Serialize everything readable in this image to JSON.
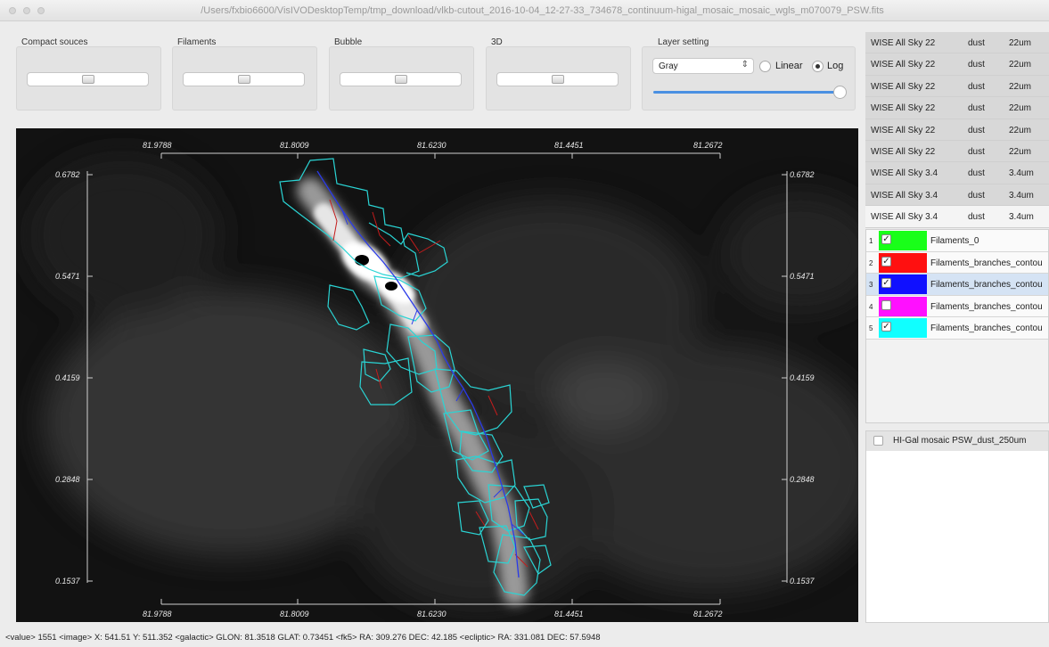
{
  "window": {
    "title": "/Users/fxbio6600/VisIVODesktopTemp/tmp_download/vlkb-cutout_2016-10-04_12-27-33_734678_continuum-higal_mosaic_mosaic_wgls_m070079_PSW.fits"
  },
  "controls": {
    "compact_sources_label": "Compact souces",
    "filaments_label": "Filaments",
    "bubble_label": "Bubble",
    "three_d_label": "3D",
    "layer_setting_label": "Layer setting",
    "colormap_value": "Gray",
    "linear_label": "Linear",
    "log_label": "Log",
    "scale_selected": "Log"
  },
  "viewer": {
    "top_ticks": [
      "81.9788",
      "81.8009",
      "81.6230",
      "81.4451",
      "81.2672"
    ],
    "bottom_ticks": [
      "81.9788",
      "81.8009",
      "81.6230",
      "81.4451",
      "81.2672"
    ],
    "left_ticks": [
      "0.6782",
      "0.5471",
      "0.4159",
      "0.2848",
      "0.1537"
    ],
    "right_ticks": [
      "0.6782",
      "0.5471",
      "0.4159",
      "0.2848",
      "0.1537"
    ]
  },
  "survey_table": {
    "rows": [
      {
        "survey": "WISE All Sky 22",
        "type": "dust",
        "band": "22um"
      },
      {
        "survey": "WISE All Sky 22",
        "type": "dust",
        "band": "22um"
      },
      {
        "survey": "WISE All Sky 22",
        "type": "dust",
        "band": "22um"
      },
      {
        "survey": "WISE All Sky 22",
        "type": "dust",
        "band": "22um"
      },
      {
        "survey": "WISE All Sky 22",
        "type": "dust",
        "band": "22um"
      },
      {
        "survey": "WISE All Sky 22",
        "type": "dust",
        "band": "22um"
      },
      {
        "survey": "WISE All Sky 3.4",
        "type": "dust",
        "band": "3.4um"
      },
      {
        "survey": "WISE All Sky 3.4",
        "type": "dust",
        "band": "3.4um"
      },
      {
        "survey": "WISE All Sky 3.4",
        "type": "dust",
        "band": "3.4um"
      }
    ]
  },
  "layers": {
    "items": [
      {
        "num": "1",
        "color": "#19ff19",
        "checked": true,
        "name": "Filaments_0"
      },
      {
        "num": "2",
        "color": "#ff1010",
        "checked": true,
        "name": "Filaments_branches_contou"
      },
      {
        "num": "3",
        "color": "#1010ff",
        "checked": true,
        "name": "Filaments_branches_contou"
      },
      {
        "num": "4",
        "color": "#ff10ff",
        "checked": false,
        "name": "Filaments_branches_contou"
      },
      {
        "num": "5",
        "color": "#10ffff",
        "checked": true,
        "name": "Filaments_branches_contou"
      }
    ]
  },
  "images": {
    "item": "HI-Gal mosaic PSW_dust_250um"
  },
  "status": {
    "text": "<value> 1551 <image> X: 541.51 Y: 511.352 <galactic> GLON: 81.3518 GLAT: 0.73451 <fk5> RA: 309.276 DEC: 42.185 <ecliptic> RA: 331.081 DEC: 57.5948"
  }
}
